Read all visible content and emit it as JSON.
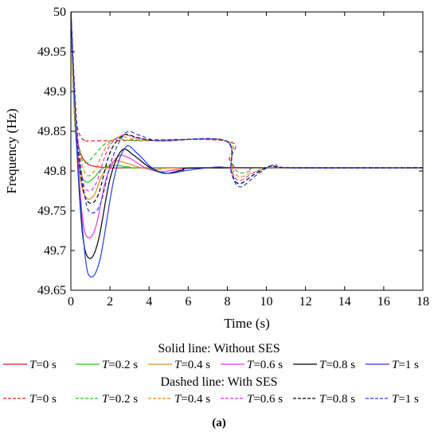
{
  "chart_data": {
    "type": "line",
    "title": "",
    "xlabel": "Time (s)",
    "ylabel": "Frequency (Hz)",
    "xlim": [
      0,
      18
    ],
    "ylim": [
      49.65,
      50
    ],
    "x_ticks": [
      "0",
      "2",
      "4",
      "6",
      "8",
      "10",
      "12",
      "14",
      "16",
      "18"
    ],
    "y_ticks": [
      "49.65",
      "49.7",
      "49.75",
      "49.8",
      "49.85",
      "49.9",
      "49.95",
      "50"
    ],
    "grid": false,
    "legend_groups": [
      {
        "title": "Solid line: Without SES",
        "style": "solid",
        "entries": [
          "T=0 s",
          "T=0.2 s",
          "T=0.4 s",
          "T=0.6 s",
          "T=0.8 s",
          "T=1 s"
        ]
      },
      {
        "title": "Dashed line: With SES",
        "style": "dashed",
        "entries": [
          "T=0 s",
          "T=0.2 s",
          "T=0.4 s",
          "T=0.6 s",
          "T=0.8 s",
          "T=1 s"
        ]
      }
    ],
    "series": [
      {
        "name": "T=0 s",
        "group": "Without SES",
        "style": "solid",
        "color": "#e8191c",
        "points": [
          [
            0,
            50
          ],
          [
            0.15,
            49.89
          ],
          [
            0.3,
            49.845
          ],
          [
            0.5,
            49.822
          ],
          [
            0.8,
            49.81
          ],
          [
            1.2,
            49.806
          ],
          [
            2,
            49.804
          ],
          [
            4,
            49.804
          ],
          [
            8,
            49.804
          ],
          [
            18,
            49.804
          ]
        ]
      },
      {
        "name": "T=0.2 s",
        "group": "Without SES",
        "style": "solid",
        "color": "#22c522",
        "points": [
          [
            0,
            50
          ],
          [
            0.2,
            49.86
          ],
          [
            0.5,
            49.8
          ],
          [
            0.8,
            49.786
          ],
          [
            1.2,
            49.792
          ],
          [
            1.6,
            49.803
          ],
          [
            2.2,
            49.807
          ],
          [
            3,
            49.805
          ],
          [
            4,
            49.804
          ],
          [
            18,
            49.804
          ]
        ]
      },
      {
        "name": "T=0.4 s",
        "group": "Without SES",
        "style": "solid",
        "color": "#e8891a",
        "points": [
          [
            0,
            50
          ],
          [
            0.2,
            49.87
          ],
          [
            0.5,
            49.79
          ],
          [
            0.8,
            49.766
          ],
          [
            1.2,
            49.77
          ],
          [
            1.6,
            49.795
          ],
          [
            2.2,
            49.812
          ],
          [
            2.8,
            49.81
          ],
          [
            3.6,
            49.804
          ],
          [
            4.5,
            49.802
          ],
          [
            6,
            49.804
          ],
          [
            18,
            49.804
          ]
        ]
      },
      {
        "name": "T=0.6 s",
        "group": "Without SES",
        "style": "solid",
        "color": "#e62ee6",
        "points": [
          [
            0,
            50
          ],
          [
            0.3,
            49.84
          ],
          [
            0.6,
            49.74
          ],
          [
            0.9,
            49.716
          ],
          [
            1.3,
            49.732
          ],
          [
            1.8,
            49.79
          ],
          [
            2.4,
            49.818
          ],
          [
            3,
            49.816
          ],
          [
            3.8,
            49.804
          ],
          [
            4.6,
            49.799
          ],
          [
            5.5,
            49.802
          ],
          [
            7,
            49.804
          ],
          [
            18,
            49.804
          ]
        ]
      },
      {
        "name": "T=0.8 s",
        "group": "Without SES",
        "style": "solid",
        "color": "#000000",
        "points": [
          [
            0,
            50
          ],
          [
            0.3,
            49.83
          ],
          [
            0.6,
            49.72
          ],
          [
            0.95,
            49.69
          ],
          [
            1.4,
            49.712
          ],
          [
            2,
            49.79
          ],
          [
            2.6,
            49.826
          ],
          [
            3.2,
            49.82
          ],
          [
            4,
            49.805
          ],
          [
            4.8,
            49.797
          ],
          [
            5.7,
            49.801
          ],
          [
            7,
            49.804
          ],
          [
            18,
            49.804
          ]
        ]
      },
      {
        "name": "T=1 s",
        "group": "Without SES",
        "style": "solid",
        "color": "#1c3fe6",
        "points": [
          [
            0,
            50
          ],
          [
            0.3,
            49.83
          ],
          [
            0.7,
            49.7
          ],
          [
            1,
            49.667
          ],
          [
            1.5,
            49.69
          ],
          [
            2.2,
            49.79
          ],
          [
            2.8,
            49.83
          ],
          [
            3.4,
            49.822
          ],
          [
            4.2,
            49.803
          ],
          [
            5,
            49.797
          ],
          [
            6,
            49.801
          ],
          [
            7.5,
            49.805
          ],
          [
            9,
            49.804
          ],
          [
            18,
            49.804
          ]
        ]
      },
      {
        "name": "T=0 s",
        "group": "With SES",
        "style": "dashed",
        "color": "#e8191c",
        "points": [
          [
            0,
            50
          ],
          [
            0.15,
            49.9
          ],
          [
            0.3,
            49.86
          ],
          [
            0.5,
            49.843
          ],
          [
            0.8,
            49.838
          ],
          [
            1.5,
            49.838
          ],
          [
            7.9,
            49.838
          ],
          [
            8.1,
            49.815
          ],
          [
            8.4,
            49.806
          ],
          [
            9,
            49.804
          ],
          [
            18,
            49.804
          ]
        ]
      },
      {
        "name": "T=0.2 s",
        "group": "With SES",
        "style": "dashed",
        "color": "#22c522",
        "points": [
          [
            0,
            50
          ],
          [
            0.2,
            49.87
          ],
          [
            0.5,
            49.82
          ],
          [
            0.8,
            49.81
          ],
          [
            1.2,
            49.82
          ],
          [
            1.8,
            49.835
          ],
          [
            2.5,
            49.84
          ],
          [
            3.5,
            49.838
          ],
          [
            7.9,
            49.838
          ],
          [
            8.2,
            49.81
          ],
          [
            8.6,
            49.798
          ],
          [
            9.2,
            49.8
          ],
          [
            10,
            49.804
          ],
          [
            18,
            49.804
          ]
        ]
      },
      {
        "name": "T=0.4 s",
        "group": "With SES",
        "style": "dashed",
        "color": "#e8891a",
        "points": [
          [
            0,
            50
          ],
          [
            0.2,
            49.87
          ],
          [
            0.5,
            49.815
          ],
          [
            0.8,
            49.795
          ],
          [
            1.2,
            49.8
          ],
          [
            1.8,
            49.83
          ],
          [
            2.5,
            49.843
          ],
          [
            3.2,
            49.84
          ],
          [
            4.5,
            49.838
          ],
          [
            7.9,
            49.838
          ],
          [
            8.2,
            49.806
          ],
          [
            8.6,
            49.793
          ],
          [
            9.3,
            49.798
          ],
          [
            10.2,
            49.805
          ],
          [
            11,
            49.804
          ],
          [
            18,
            49.804
          ]
        ]
      },
      {
        "name": "T=0.6 s",
        "group": "With SES",
        "style": "dashed",
        "color": "#e62ee6",
        "points": [
          [
            0,
            50
          ],
          [
            0.3,
            49.86
          ],
          [
            0.6,
            49.79
          ],
          [
            0.9,
            49.775
          ],
          [
            1.3,
            49.785
          ],
          [
            1.9,
            49.828
          ],
          [
            2.6,
            49.845
          ],
          [
            3.3,
            49.842
          ],
          [
            4.5,
            49.838
          ],
          [
            7.9,
            49.838
          ],
          [
            8.2,
            49.802
          ],
          [
            8.6,
            49.788
          ],
          [
            9.3,
            49.797
          ],
          [
            10.2,
            49.806
          ],
          [
            11,
            49.804
          ],
          [
            18,
            49.804
          ]
        ]
      },
      {
        "name": "T=0.8 s",
        "group": "With SES",
        "style": "dashed",
        "color": "#000000",
        "points": [
          [
            0,
            50
          ],
          [
            0.3,
            49.85
          ],
          [
            0.6,
            49.78
          ],
          [
            0.95,
            49.76
          ],
          [
            1.4,
            49.77
          ],
          [
            2,
            49.823
          ],
          [
            2.7,
            49.845
          ],
          [
            3.4,
            49.842
          ],
          [
            4.5,
            49.838
          ],
          [
            7.9,
            49.838
          ],
          [
            8.2,
            49.8
          ],
          [
            8.6,
            49.784
          ],
          [
            9.4,
            49.796
          ],
          [
            10.3,
            49.807
          ],
          [
            11.2,
            49.804
          ],
          [
            18,
            49.804
          ]
        ]
      },
      {
        "name": "T=1 s",
        "group": "With SES",
        "style": "dashed",
        "color": "#1c3fe6",
        "points": [
          [
            0,
            50
          ],
          [
            0.3,
            49.85
          ],
          [
            0.7,
            49.77
          ],
          [
            1,
            49.748
          ],
          [
            1.5,
            49.758
          ],
          [
            2.1,
            49.815
          ],
          [
            2.8,
            49.848
          ],
          [
            3.5,
            49.845
          ],
          [
            4.6,
            49.838
          ],
          [
            7.9,
            49.838
          ],
          [
            8.2,
            49.798
          ],
          [
            8.65,
            49.78
          ],
          [
            9.5,
            49.795
          ],
          [
            10.4,
            49.808
          ],
          [
            11.3,
            49.804
          ],
          [
            18,
            49.804
          ]
        ]
      }
    ]
  },
  "panel_label": "(a)"
}
